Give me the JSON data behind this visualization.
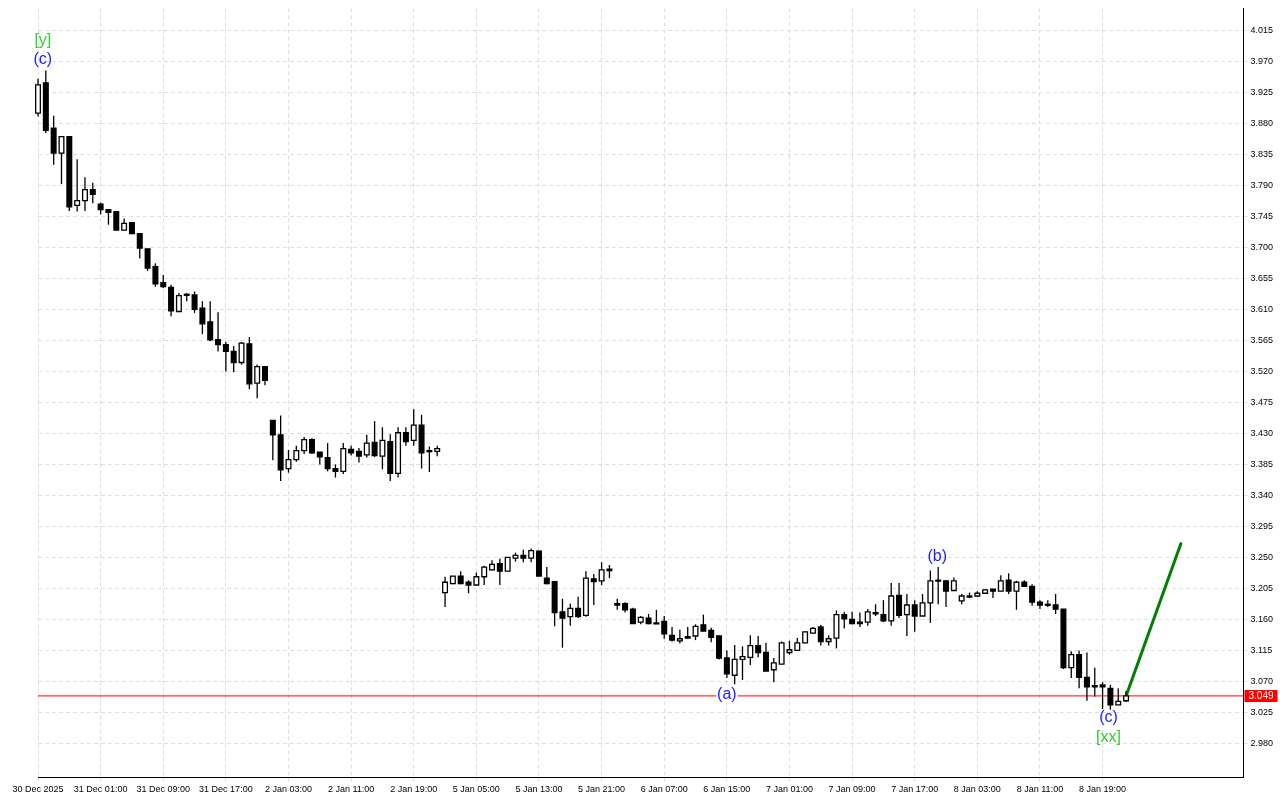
{
  "chart_data": {
    "type": "candlestick",
    "color": "#000000",
    "categories": [
      "30 Dec 2025",
      null,
      null,
      null,
      null,
      null,
      null,
      null,
      "31 Dec 01:00",
      null,
      null,
      null,
      null,
      null,
      null,
      null,
      "31 Dec 09:00",
      null,
      null,
      null,
      null,
      null,
      null,
      null,
      "31 Dec 17:00",
      null,
      null,
      null,
      null,
      null,
      null,
      null,
      "2 Jan 03:00",
      null,
      null,
      null,
      null,
      null,
      null,
      null,
      "2 Jan 11:00",
      null,
      null,
      null,
      null,
      null,
      null,
      null,
      "2 Jan 19:00",
      null,
      null,
      null,
      null,
      null,
      null,
      null,
      "5 Jan 05:00",
      null,
      null,
      null,
      null,
      null,
      null,
      null,
      "5 Jan 13:00",
      null,
      null,
      null,
      null,
      null,
      null,
      null,
      "5 Jan 21:00",
      null,
      null,
      null,
      null,
      null,
      null,
      null,
      "6 Jan 07:00",
      null,
      null,
      null,
      null,
      null,
      null,
      null,
      "6 Jan 15:00",
      null,
      null,
      null,
      null,
      null,
      null,
      null,
      "7 Jan 01:00",
      null,
      null,
      null,
      null,
      null,
      null,
      null,
      "7 Jan 09:00",
      null,
      null,
      null,
      null,
      null,
      null,
      null,
      "7 Jan 17:00",
      null,
      null,
      null,
      null,
      null,
      null,
      null,
      "8 Jan 03:00",
      null,
      null,
      null,
      null,
      null,
      null,
      null,
      "8 Jan 11:00",
      null,
      null,
      null,
      null,
      null,
      null,
      null,
      "8 Jan 19:00",
      null,
      null,
      null,
      null,
      null,
      null,
      null,
      null,
      null,
      null,
      null,
      null,
      null,
      null,
      null,
      null,
      null,
      null
    ],
    "ohlc": [
      [
        3.895,
        3.945,
        3.89,
        3.936
      ],
      [
        3.939,
        3.957,
        3.866,
        3.87
      ],
      [
        3.873,
        3.891,
        3.82,
        3.837
      ],
      [
        3.837,
        3.861,
        3.792,
        3.861
      ],
      [
        3.861,
        3.861,
        3.753,
        3.759
      ],
      [
        3.761,
        3.828,
        3.752,
        3.768
      ],
      [
        3.768,
        3.802,
        3.753,
        3.784
      ],
      [
        3.784,
        3.794,
        3.764,
        3.777
      ],
      [
        3.763,
        3.765,
        3.748,
        3.755
      ],
      [
        3.755,
        3.755,
        3.733,
        3.751
      ],
      [
        3.752,
        3.752,
        3.725,
        3.725
      ],
      [
        3.725,
        3.742,
        3.725,
        3.735
      ],
      [
        3.736,
        3.736,
        3.719,
        3.72
      ],
      [
        3.72,
        3.72,
        3.684,
        3.699
      ],
      [
        3.698,
        3.698,
        3.666,
        3.67
      ],
      [
        3.672,
        3.677,
        3.643,
        3.647
      ],
      [
        3.649,
        3.66,
        3.641,
        3.643
      ],
      [
        3.642,
        3.646,
        3.6,
        3.608
      ],
      [
        3.607,
        3.634,
        3.607,
        3.63
      ],
      [
        3.631,
        3.634,
        3.622,
        3.632
      ],
      [
        3.631,
        3.636,
        3.605,
        3.61
      ],
      [
        3.612,
        3.622,
        3.574,
        3.589
      ],
      [
        3.592,
        3.622,
        3.564,
        3.566
      ],
      [
        3.566,
        3.606,
        3.549,
        3.559
      ],
      [
        3.559,
        3.563,
        3.52,
        3.549
      ],
      [
        3.549,
        3.557,
        3.519,
        3.533
      ],
      [
        3.533,
        3.563,
        3.53,
        3.561
      ],
      [
        3.56,
        3.57,
        3.494,
        3.502
      ],
      [
        3.503,
        3.53,
        3.481,
        3.527
      ],
      [
        3.527,
        3.527,
        3.5,
        3.507
      ],
      [
        3.449,
        3.449,
        3.391,
        3.428
      ],
      [
        3.428,
        3.456,
        3.361,
        3.377
      ],
      [
        3.379,
        3.406,
        3.373,
        3.392
      ],
      [
        3.392,
        3.412,
        3.389,
        3.405
      ],
      [
        3.405,
        3.425,
        3.4,
        3.421
      ],
      [
        3.421,
        3.423,
        3.4,
        3.402
      ],
      [
        3.403,
        3.403,
        3.385,
        3.396
      ],
      [
        3.395,
        3.416,
        3.375,
        3.379
      ],
      [
        3.379,
        3.385,
        3.366,
        3.375
      ],
      [
        3.375,
        3.416,
        3.371,
        3.408
      ],
      [
        3.407,
        3.412,
        3.398,
        3.402
      ],
      [
        3.404,
        3.409,
        3.388,
        3.397
      ],
      [
        3.399,
        3.428,
        3.395,
        3.416
      ],
      [
        3.417,
        3.448,
        3.396,
        3.398
      ],
      [
        3.397,
        3.439,
        3.378,
        3.42
      ],
      [
        3.418,
        3.429,
        3.361,
        3.372
      ],
      [
        3.372,
        3.439,
        3.366,
        3.431
      ],
      [
        3.431,
        3.439,
        3.412,
        3.418
      ],
      [
        3.42,
        3.465,
        3.412,
        3.442
      ],
      [
        3.442,
        3.457,
        3.379,
        3.402
      ],
      [
        3.405,
        3.411,
        3.374,
        3.404
      ],
      [
        3.404,
        3.412,
        3.397,
        3.408
      ],
      [
        3.199,
        3.222,
        3.178,
        3.214
      ],
      [
        3.212,
        3.223,
        3.211,
        3.223
      ],
      [
        3.223,
        3.23,
        3.211,
        3.212
      ],
      [
        3.214,
        3.217,
        3.198,
        3.21
      ],
      [
        3.21,
        3.228,
        3.21,
        3.222
      ],
      [
        3.222,
        3.238,
        3.21,
        3.236
      ],
      [
        3.232,
        3.246,
        3.231,
        3.24
      ],
      [
        3.241,
        3.248,
        3.21,
        3.23
      ],
      [
        3.23,
        3.25,
        3.23,
        3.25
      ],
      [
        3.249,
        3.257,
        3.244,
        3.253
      ],
      [
        3.253,
        3.261,
        3.243,
        3.249
      ],
      [
        3.249,
        3.263,
        3.243,
        3.26
      ],
      [
        3.259,
        3.26,
        3.223,
        3.223
      ],
      [
        3.22,
        3.236,
        3.211,
        3.212
      ],
      [
        3.215,
        3.216,
        3.15,
        3.17
      ],
      [
        3.171,
        3.19,
        3.119,
        3.162
      ],
      [
        3.164,
        3.183,
        3.151,
        3.176
      ],
      [
        3.176,
        3.193,
        3.162,
        3.164
      ],
      [
        3.166,
        3.23,
        3.164,
        3.22
      ],
      [
        3.219,
        3.226,
        3.181,
        3.215
      ],
      [
        3.216,
        3.243,
        3.21,
        3.232
      ],
      [
        3.233,
        3.239,
        3.22,
        3.231
      ],
      [
        3.183,
        3.19,
        3.174,
        3.181
      ],
      [
        3.183,
        3.185,
        3.17,
        3.174
      ],
      [
        3.175,
        3.177,
        3.154,
        3.154
      ],
      [
        3.156,
        3.165,
        3.153,
        3.163
      ],
      [
        3.162,
        3.168,
        3.153,
        3.154
      ],
      [
        3.155,
        3.174,
        3.154,
        3.154
      ],
      [
        3.157,
        3.165,
        3.132,
        3.139
      ],
      [
        3.137,
        3.149,
        3.128,
        3.13
      ],
      [
        3.129,
        3.145,
        3.125,
        3.132
      ],
      [
        3.135,
        3.149,
        3.132,
        3.133
      ],
      [
        3.136,
        3.153,
        3.13,
        3.15
      ],
      [
        3.152,
        3.167,
        3.143,
        3.143
      ],
      [
        3.144,
        3.148,
        3.127,
        3.134
      ],
      [
        3.136,
        3.137,
        3.102,
        3.104
      ],
      [
        3.104,
        3.115,
        3.075,
        3.081
      ],
      [
        3.079,
        3.123,
        3.066,
        3.102
      ],
      [
        3.102,
        3.121,
        3.072,
        3.106
      ],
      [
        3.105,
        3.137,
        3.094,
        3.122
      ],
      [
        3.122,
        3.136,
        3.105,
        3.112
      ],
      [
        3.112,
        3.126,
        3.085,
        3.085
      ],
      [
        3.087,
        3.104,
        3.069,
        3.097
      ],
      [
        3.095,
        3.128,
        3.095,
        3.126
      ],
      [
        3.112,
        3.129,
        3.109,
        3.116
      ],
      [
        3.115,
        3.133,
        3.115,
        3.126
      ],
      [
        3.126,
        3.142,
        3.126,
        3.142
      ],
      [
        3.14,
        3.149,
        3.139,
        3.147
      ],
      [
        3.149,
        3.152,
        3.122,
        3.128
      ],
      [
        3.128,
        3.137,
        3.122,
        3.132
      ],
      [
        3.133,
        3.173,
        3.118,
        3.167
      ],
      [
        3.167,
        3.171,
        3.147,
        3.161
      ],
      [
        3.16,
        3.171,
        3.153,
        3.154
      ],
      [
        3.156,
        3.17,
        3.149,
        3.154
      ],
      [
        3.156,
        3.175,
        3.151,
        3.171
      ],
      [
        3.17,
        3.182,
        3.165,
        3.168
      ],
      [
        3.167,
        3.188,
        3.156,
        3.158
      ],
      [
        3.158,
        3.213,
        3.151,
        3.194
      ],
      [
        3.195,
        3.213,
        3.162,
        3.166
      ],
      [
        3.167,
        3.197,
        3.136,
        3.181
      ],
      [
        3.181,
        3.188,
        3.142,
        3.165
      ],
      [
        3.165,
        3.197,
        3.165,
        3.184
      ],
      [
        3.184,
        3.231,
        3.155,
        3.216
      ],
      [
        3.216,
        3.236,
        3.182,
        3.217
      ],
      [
        3.216,
        3.217,
        3.178,
        3.201
      ],
      [
        3.202,
        3.221,
        3.202,
        3.216
      ],
      [
        3.187,
        3.197,
        3.182,
        3.194
      ],
      [
        3.194,
        3.199,
        3.191,
        3.194
      ],
      [
        3.194,
        3.201,
        3.193,
        3.198
      ],
      [
        3.198,
        3.204,
        3.198,
        3.203
      ],
      [
        3.204,
        3.204,
        3.191,
        3.201
      ],
      [
        3.201,
        3.224,
        3.201,
        3.216
      ],
      [
        3.217,
        3.227,
        3.197,
        3.201
      ],
      [
        3.201,
        3.216,
        3.174,
        3.214
      ],
      [
        3.214,
        3.217,
        3.208,
        3.208
      ],
      [
        3.208,
        3.211,
        3.18,
        3.185
      ],
      [
        3.185,
        3.188,
        3.175,
        3.181
      ],
      [
        3.182,
        3.188,
        3.178,
        3.181
      ],
      [
        3.181,
        3.197,
        3.168,
        3.175
      ],
      [
        3.175,
        3.175,
        3.088,
        3.09
      ],
      [
        3.09,
        3.114,
        3.075,
        3.109
      ],
      [
        3.109,
        3.115,
        3.06,
        3.076
      ],
      [
        3.076,
        3.112,
        3.042,
        3.062
      ],
      [
        3.064,
        3.09,
        3.048,
        3.062
      ],
      [
        3.065,
        3.069,
        3.03,
        3.062
      ],
      [
        3.06,
        3.065,
        3.029,
        3.036
      ],
      [
        3.036,
        3.06,
        3.036,
        3.041
      ],
      [
        3.042,
        3.056,
        3.04,
        3.049
      ],
      null,
      null,
      null,
      null,
      null,
      null,
      null,
      null,
      null,
      null,
      null,
      null,
      null,
      null,
      null
    ],
    "series": [
      {
        "type": "line",
        "color": "#008000",
        "values": [
          null,
          null,
          null,
          null,
          null,
          null,
          null,
          null,
          null,
          null,
          null,
          null,
          null,
          null,
          null,
          null,
          null,
          null,
          null,
          null,
          null,
          null,
          null,
          null,
          null,
          null,
          null,
          null,
          null,
          null,
          null,
          null,
          null,
          null,
          null,
          null,
          null,
          null,
          null,
          null,
          null,
          null,
          null,
          null,
          null,
          null,
          null,
          null,
          null,
          null,
          null,
          null,
          null,
          null,
          null,
          null,
          null,
          null,
          null,
          null,
          null,
          null,
          null,
          null,
          null,
          null,
          null,
          null,
          null,
          null,
          null,
          null,
          null,
          null,
          null,
          null,
          null,
          null,
          null,
          null,
          null,
          null,
          null,
          null,
          null,
          null,
          null,
          null,
          null,
          null,
          null,
          null,
          null,
          null,
          null,
          null,
          null,
          null,
          null,
          null,
          null,
          null,
          null,
          null,
          null,
          null,
          null,
          null,
          null,
          null,
          null,
          null,
          null,
          null,
          null,
          null,
          null,
          null,
          null,
          null,
          null,
          null,
          null,
          null,
          null,
          null,
          null,
          null,
          null,
          null,
          null,
          null,
          null,
          null,
          null,
          null,
          null,
          null,
          null,
          3.049,
          null,
          null,
          null,
          null,
          null,
          null,
          3.27,
          null,
          null,
          null,
          null,
          null,
          null,
          null,
          null
        ]
      }
    ],
    "ylim": [
      2.931,
      4.047
    ],
    "yticks": [
      {
        "value": 2.98,
        "label": "2.980"
      },
      {
        "value": 3.025,
        "label": "3.025"
      },
      {
        "value": 3.07,
        "label": "3.070"
      },
      {
        "value": 3.115,
        "label": "3.115"
      },
      {
        "value": 3.16,
        "label": "3.160"
      },
      {
        "value": 3.205,
        "label": "3.205"
      },
      {
        "value": 3.25,
        "label": "3.250"
      },
      {
        "value": 3.295,
        "label": "3.295"
      },
      {
        "value": 3.34,
        "label": "3.340"
      },
      {
        "value": 3.385,
        "label": "3.385"
      },
      {
        "value": 3.43,
        "label": "3.430"
      },
      {
        "value": 3.475,
        "label": "3.475"
      },
      {
        "value": 3.52,
        "label": "3.520"
      },
      {
        "value": 3.565,
        "label": "3.565"
      },
      {
        "value": 3.61,
        "label": "3.610"
      },
      {
        "value": 3.655,
        "label": "3.655"
      },
      {
        "value": 3.7,
        "label": "3.700"
      },
      {
        "value": 3.745,
        "label": "3.745"
      },
      {
        "value": 3.79,
        "label": "3.790"
      },
      {
        "value": 3.835,
        "label": "3.835"
      },
      {
        "value": 3.88,
        "label": "3.880"
      },
      {
        "value": 3.925,
        "label": "3.925"
      },
      {
        "value": 3.97,
        "label": "3.970"
      },
      {
        "value": 4.015,
        "label": "4.015"
      }
    ],
    "ref_lines": [
      {
        "axis": "y",
        "value": 3.049,
        "label": "3.049",
        "color": "#ff0000"
      }
    ],
    "annotations": [
      "[y]",
      "(c)",
      {
        "text": "(a)",
        "x": "6 Jan 15:00",
        "y": 3.051
      },
      "(b)",
      "(c)",
      "[xx]"
    ],
    "colors": [
      "#ffffff",
      "#000000",
      "#000000",
      "#ffffff",
      "#000000",
      "#ffffff",
      "#ffffff",
      "#000000",
      "#000000",
      "#000000",
      "#000000",
      "#ffffff",
      "#000000",
      "#000000",
      "#000000",
      "#000000",
      "#000000",
      "#000000",
      "#ffffff",
      "#ffffff",
      "#000000",
      "#000000",
      "#000000",
      "#000000",
      "#000000",
      "#000000",
      "#ffffff",
      "#000000",
      "#ffffff",
      "#000000",
      "#000000",
      "#000000",
      "#ffffff",
      "#ffffff",
      "#ffffff",
      "#000000",
      "#000000",
      "#000000",
      "#000000",
      "#ffffff",
      "#000000",
      "#000000",
      "#ffffff",
      "#000000",
      "#ffffff",
      "#000000",
      "#ffffff",
      "#000000",
      "#ffffff",
      "#000000",
      "#000000",
      "#ffffff",
      "#ffffff",
      "#ffffff",
      "#000000",
      "#000000",
      "#ffffff",
      "#ffffff",
      "#ffffff",
      "#000000",
      "#ffffff",
      "#ffffff",
      "#000000",
      "#ffffff",
      "#000000",
      "#000000",
      "#000000",
      "#000000",
      "#ffffff",
      "#000000",
      "#ffffff",
      "#000000",
      "#ffffff",
      "#000000",
      "#000000",
      "#000000",
      "#000000",
      "#ffffff",
      "#000000",
      "#000000",
      "#000000",
      "#000000",
      "#ffffff",
      "#000000",
      "#ffffff",
      "#000000",
      "#000000",
      "#000000",
      "#000000",
      "#ffffff",
      "#ffffff",
      "#ffffff",
      "#000000",
      "#000000",
      "#ffffff",
      "#ffffff",
      "#ffffff",
      "#ffffff",
      "#ffffff",
      "#ffffff",
      "#000000",
      "#ffffff",
      "#ffffff",
      "#000000",
      "#000000",
      "#000000",
      "#ffffff",
      "#000000",
      "#000000",
      "#ffffff",
      "#000000",
      "#ffffff",
      "#000000",
      "#ffffff",
      "#ffffff",
      "#ffffff",
      "#000000",
      "#ffffff",
      "#ffffff",
      "#000000",
      "#ffffff",
      "#ffffff",
      "#000000",
      "#ffffff",
      "#000000",
      "#ffffff",
      "#000000",
      "#000000",
      "#000000",
      "#000000",
      "#000000",
      "#000000",
      "#ffffff",
      "#000000",
      "#000000",
      "#000000",
      "#000000",
      "#000000",
      "#ffffff",
      "#ffffff",
      null,
      null,
      null,
      null,
      null,
      null,
      null,
      null,
      null,
      null,
      null,
      null,
      null,
      null,
      null
    ],
    "grid": true,
    "legend": false
  }
}
